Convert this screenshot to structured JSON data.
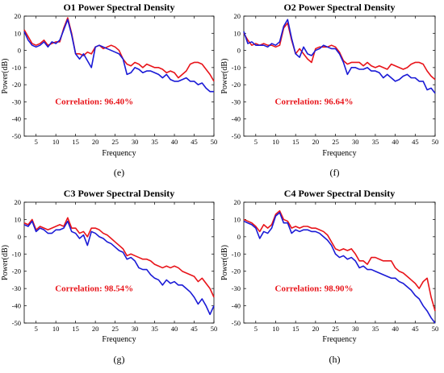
{
  "colors": {
    "series_a": "#e8141a",
    "series_b": "#1a1ad6",
    "correlation_text": "#e8141a"
  },
  "chart_data": [
    {
      "type": "line",
      "title": "O1 Power Spectral Density",
      "xlabel": "Frequency",
      "ylabel": "Power(dB)",
      "caption": "(e)",
      "annotation": "Correlation:  96.40%",
      "xlim": [
        2,
        50
      ],
      "ylim": [
        -50,
        20
      ],
      "xticks": [
        5,
        10,
        15,
        20,
        25,
        30,
        35,
        40,
        45,
        50
      ],
      "yticks": [
        -50,
        -40,
        -30,
        -20,
        -10,
        0,
        10,
        20
      ],
      "grid": false,
      "x": [
        2,
        3,
        4,
        5,
        6,
        7,
        8,
        9,
        10,
        11,
        12,
        13,
        14,
        15,
        16,
        17,
        18,
        19,
        20,
        21,
        22,
        23,
        24,
        25,
        26,
        27,
        28,
        29,
        30,
        31,
        32,
        33,
        34,
        35,
        36,
        37,
        38,
        39,
        40,
        41,
        42,
        43,
        44,
        45,
        46,
        47,
        48,
        49,
        50
      ],
      "series": [
        {
          "values": [
            12,
            8,
            4,
            3,
            4,
            6,
            3,
            4,
            5,
            5,
            13,
            19,
            10,
            -2,
            -2,
            -3,
            -1,
            -2,
            2,
            3,
            1,
            2,
            3,
            2,
            0,
            -5,
            -8,
            -9,
            -7,
            -8,
            -10,
            -8,
            -9,
            -10,
            -10,
            -11,
            -13,
            -12,
            -13,
            -16,
            -14,
            -12,
            -8,
            -7,
            -7,
            -8,
            -11,
            -14,
            -18
          ]
        },
        {
          "values": [
            11,
            6,
            3,
            2,
            3,
            5,
            2,
            5,
            4,
            6,
            12,
            18,
            9,
            -2,
            -5,
            -2,
            -6,
            -10,
            2,
            3,
            2,
            1,
            0,
            -1,
            -2,
            -5,
            -14,
            -13,
            -10,
            -11,
            -13,
            -12,
            -12,
            -13,
            -14,
            -16,
            -14,
            -17,
            -18,
            -18,
            -17,
            -16,
            -18,
            -18,
            -20,
            -19,
            -22,
            -24,
            -24
          ]
        }
      ]
    },
    {
      "type": "line",
      "title": "O2 Power Spectral Density",
      "xlabel": "Frequency",
      "ylabel": "Power(dB)",
      "caption": "(f)",
      "annotation": "Correlation:  96.64%",
      "xlim": [
        2,
        50
      ],
      "ylim": [
        -50,
        20
      ],
      "xticks": [
        5,
        10,
        15,
        20,
        25,
        30,
        35,
        40,
        45,
        50
      ],
      "yticks": [
        -50,
        -40,
        -30,
        -20,
        -10,
        0,
        10,
        20
      ],
      "grid": false,
      "x": [
        2,
        3,
        4,
        5,
        6,
        7,
        8,
        9,
        10,
        11,
        12,
        13,
        14,
        15,
        16,
        17,
        18,
        19,
        20,
        21,
        22,
        23,
        24,
        25,
        26,
        27,
        28,
        29,
        30,
        31,
        32,
        33,
        34,
        35,
        36,
        37,
        38,
        39,
        40,
        41,
        42,
        43,
        44,
        45,
        46,
        47,
        48,
        49,
        50
      ],
      "series": [
        {
          "values": [
            10,
            6,
            3,
            4,
            3,
            4,
            3,
            3,
            2,
            3,
            13,
            16,
            6,
            -2,
            1,
            -2,
            -5,
            -7,
            1,
            2,
            2,
            2,
            3,
            2,
            -1,
            -6,
            -8,
            -7,
            -7,
            -7,
            -9,
            -7,
            -9,
            -10,
            -9,
            -10,
            -11,
            -8,
            -9,
            -10,
            -11,
            -10,
            -8,
            -7,
            -7,
            -8,
            -12,
            -15,
            -17
          ]
        },
        {
          "values": [
            11,
            4,
            5,
            3,
            3,
            3,
            2,
            4,
            3,
            5,
            14,
            18,
            7,
            -2,
            -4,
            2,
            -2,
            -3,
            0,
            1,
            3,
            2,
            1,
            1,
            -2,
            -7,
            -14,
            -10,
            -10,
            -11,
            -11,
            -10,
            -12,
            -12,
            -13,
            -16,
            -14,
            -16,
            -18,
            -17,
            -15,
            -14,
            -16,
            -16,
            -18,
            -18,
            -23,
            -22,
            -25
          ]
        }
      ]
    },
    {
      "type": "line",
      "title": "C3 Power Spectral Density",
      "xlabel": "Frequency",
      "ylabel": "Power(dB)",
      "caption": "(g)",
      "annotation": "Correlation:  98.54%",
      "xlim": [
        2,
        50
      ],
      "ylim": [
        -50,
        20
      ],
      "xticks": [
        5,
        10,
        15,
        20,
        25,
        30,
        35,
        40,
        45,
        50
      ],
      "yticks": [
        -50,
        -40,
        -30,
        -20,
        -10,
        0,
        10,
        20
      ],
      "grid": false,
      "x": [
        2,
        3,
        4,
        5,
        6,
        7,
        8,
        9,
        10,
        11,
        12,
        13,
        14,
        15,
        16,
        17,
        18,
        19,
        20,
        21,
        22,
        23,
        24,
        25,
        26,
        27,
        28,
        29,
        30,
        31,
        32,
        33,
        34,
        35,
        36,
        37,
        38,
        39,
        40,
        41,
        42,
        43,
        44,
        45,
        46,
        47,
        48,
        49,
        50
      ],
      "series": [
        {
          "values": [
            8,
            7,
            10,
            4,
            6,
            5,
            4,
            5,
            6,
            7,
            6,
            11,
            5,
            5,
            2,
            3,
            0,
            5,
            5,
            4,
            2,
            1,
            -1,
            -3,
            -5,
            -7,
            -11,
            -10,
            -11,
            -12,
            -13,
            -13,
            -14,
            -16,
            -17,
            -18,
            -17,
            -18,
            -17,
            -18,
            -20,
            -21,
            -22,
            -23,
            -26,
            -24,
            -27,
            -30,
            -35
          ]
        },
        {
          "values": [
            7,
            6,
            9,
            3,
            5,
            4,
            2,
            2,
            4,
            4,
            5,
            9,
            3,
            2,
            -1,
            1,
            -5,
            3,
            2,
            0,
            -1,
            -3,
            -4,
            -6,
            -8,
            -9,
            -13,
            -12,
            -14,
            -18,
            -19,
            -19,
            -22,
            -24,
            -25,
            -28,
            -25,
            -27,
            -26,
            -28,
            -28,
            -30,
            -32,
            -35,
            -39,
            -36,
            -40,
            -45,
            -40
          ]
        }
      ]
    },
    {
      "type": "line",
      "title": "C4 Power Spectral Density",
      "xlabel": "Frequency",
      "ylabel": "Power(dB)",
      "caption": "(h)",
      "annotation": "Correlation:  98.90%",
      "xlim": [
        2,
        50
      ],
      "ylim": [
        -50,
        20
      ],
      "xticks": [
        5,
        10,
        15,
        20,
        25,
        30,
        35,
        40,
        45,
        50
      ],
      "yticks": [
        -50,
        -40,
        -30,
        -20,
        -10,
        0,
        10,
        20
      ],
      "grid": false,
      "x": [
        2,
        3,
        4,
        5,
        6,
        7,
        8,
        9,
        10,
        11,
        12,
        13,
        14,
        15,
        16,
        17,
        18,
        19,
        20,
        21,
        22,
        23,
        24,
        25,
        26,
        27,
        28,
        29,
        30,
        31,
        32,
        33,
        34,
        35,
        36,
        37,
        38,
        39,
        40,
        41,
        42,
        43,
        44,
        45,
        46,
        47,
        48,
        49,
        50
      ],
      "series": [
        {
          "values": [
            10,
            9,
            8,
            6,
            3,
            7,
            5,
            7,
            13,
            15,
            10,
            9,
            5,
            6,
            5,
            6,
            6,
            5,
            5,
            4,
            3,
            1,
            -3,
            -7,
            -8,
            -7,
            -8,
            -7,
            -10,
            -14,
            -14,
            -16,
            -12,
            -12,
            -13,
            -14,
            -14,
            -14,
            -18,
            -20,
            -21,
            -23,
            -25,
            -27,
            -30,
            -26,
            -24,
            -35,
            -43
          ]
        },
        {
          "values": [
            9,
            8,
            7,
            5,
            -1,
            3,
            2,
            5,
            12,
            14,
            8,
            8,
            2,
            4,
            3,
            4,
            4,
            3,
            3,
            2,
            0,
            -2,
            -5,
            -10,
            -12,
            -11,
            -13,
            -12,
            -14,
            -18,
            -17,
            -19,
            -19,
            -20,
            -21,
            -22,
            -23,
            -24,
            -24,
            -26,
            -27,
            -29,
            -31,
            -34,
            -36,
            -40,
            -43,
            -47,
            -50
          ]
        }
      ]
    }
  ]
}
